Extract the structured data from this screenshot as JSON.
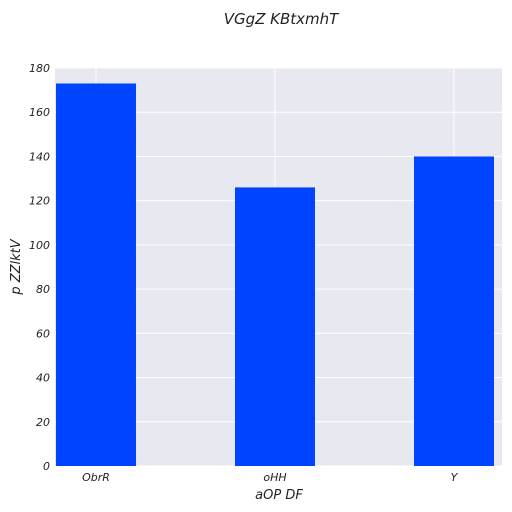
{
  "chart_data": {
    "type": "bar",
    "title": "VGgZ KBtxmhT",
    "xlabel": "aOP DF",
    "ylabel": "p ZZlktV",
    "categories": [
      "ObrR",
      "oHH",
      "Y"
    ],
    "values": [
      173,
      126,
      140
    ],
    "ylim": [
      0,
      180
    ],
    "yticks": [
      0,
      20,
      40,
      60,
      80,
      100,
      120,
      140,
      160,
      180
    ],
    "grid": true,
    "bar_color": "#0044ff",
    "background_color": "#e8e8f0"
  }
}
